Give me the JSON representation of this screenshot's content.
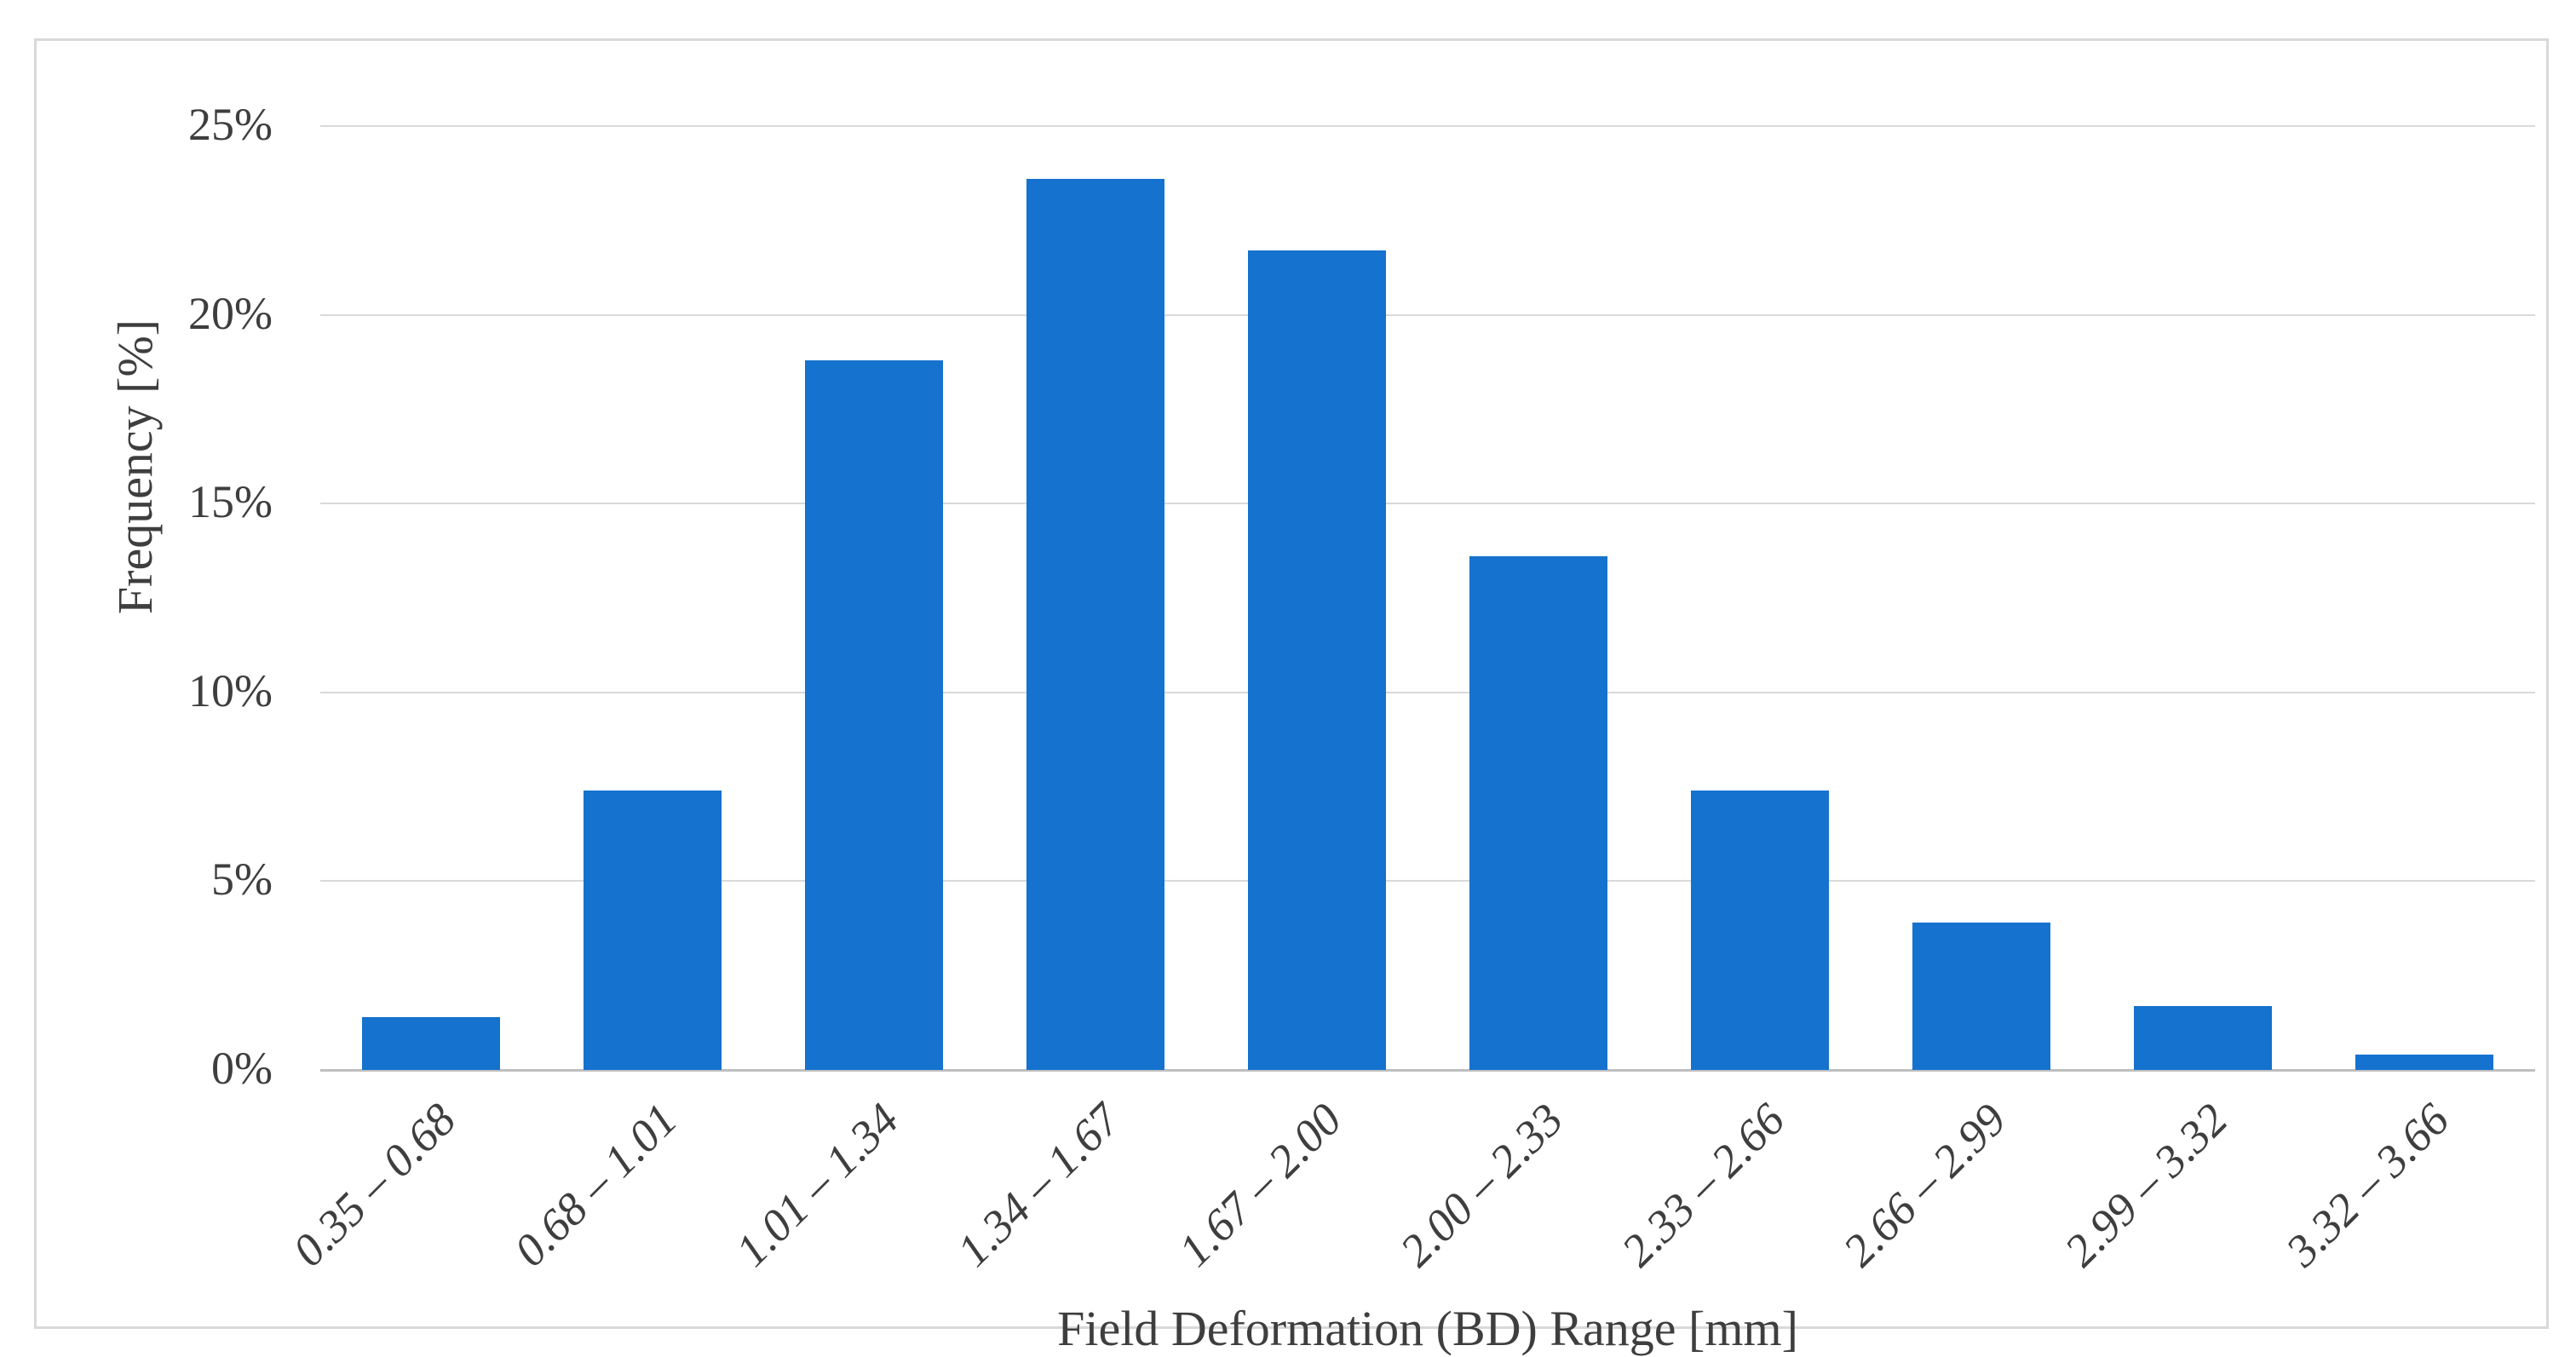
{
  "chart_data": {
    "type": "bar",
    "title": "",
    "categories": [
      "0.35 – 0.68",
      "0.68 – 1.01",
      "1.01 – 1.34",
      "1.34 – 1.67",
      "1.67 – 2.00",
      "2.00 – 2.33",
      "2.33 – 2.66",
      "2.66 – 2.99",
      "2.99 – 3.32",
      "3.32 – 3.66"
    ],
    "values": [
      1.4,
      7.4,
      18.8,
      23.6,
      21.7,
      13.6,
      7.4,
      3.9,
      1.7,
      0.4
    ],
    "xlabel": "Field Deformation (BD) Range [mm]",
    "ylabel": "Frequency [%]",
    "ylim": [
      0,
      25
    ],
    "ytick_step": 5,
    "ytick_labels": [
      "0%",
      "5%",
      "10%",
      "15%",
      "20%",
      "25%"
    ],
    "grid": "horizontal-only",
    "legend": "none",
    "colors": {
      "bar": "#1572ce",
      "gridline": "#d9d9d9",
      "axis_line": "#bfbfbf",
      "text": "#3e3e3e",
      "frame_border": "#d9d9d9",
      "background": "#ffffff"
    }
  }
}
